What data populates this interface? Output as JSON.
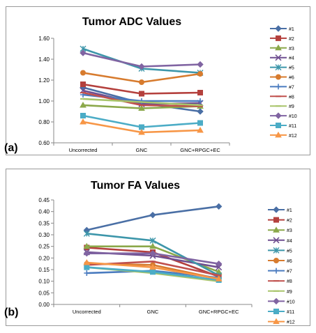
{
  "charts": {
    "a": {
      "panel_label": "(a)"
    },
    "b": {
      "panel_label": "(b)"
    }
  },
  "chart_data": [
    {
      "type": "line",
      "title": "Tumor ADC Values",
      "categories": [
        "Uncorrected",
        "GNC",
        "GNC+RPGC+EC"
      ],
      "ylim": [
        0.6,
        1.6
      ],
      "yticks": [
        "0.60",
        "0.80",
        "1.00",
        "1.20",
        "1.40",
        "1.60"
      ],
      "grid": false,
      "legend": "right",
      "series": [
        {
          "name": "#1",
          "color": "#4a6fa5",
          "marker": "diamond",
          "values": [
            1.13,
            0.98,
            0.9
          ]
        },
        {
          "name": "#2",
          "color": "#b4403d",
          "marker": "square",
          "values": [
            1.16,
            1.07,
            1.08
          ]
        },
        {
          "name": "#3",
          "color": "#8ba84a",
          "marker": "triangle",
          "values": [
            0.96,
            0.93,
            0.95
          ]
        },
        {
          "name": "#4",
          "color": "#6f4f90",
          "marker": "x",
          "values": [
            1.1,
            0.97,
            0.98
          ]
        },
        {
          "name": "#5",
          "color": "#3d96aa",
          "marker": "star",
          "values": [
            1.5,
            1.31,
            1.27
          ]
        },
        {
          "name": "#6",
          "color": "#d77b2e",
          "marker": "circle",
          "values": [
            1.27,
            1.18,
            1.26
          ]
        },
        {
          "name": "#7",
          "color": "#4a7bbf",
          "marker": "plus",
          "values": [
            1.06,
            1.0,
            1.0
          ]
        },
        {
          "name": "#8",
          "color": "#c0504d",
          "marker": "dash",
          "values": [
            1.08,
            0.96,
            0.95
          ]
        },
        {
          "name": "#9",
          "color": "#a8c46a",
          "marker": "dash",
          "values": [
            1.02,
            0.99,
            0.96
          ]
        },
        {
          "name": "#10",
          "color": "#8064a2",
          "marker": "diamond",
          "values": [
            1.46,
            1.33,
            1.35
          ]
        },
        {
          "name": "#11",
          "color": "#4bacc6",
          "marker": "square",
          "values": [
            0.86,
            0.75,
            0.79
          ]
        },
        {
          "name": "#12",
          "color": "#f79646",
          "marker": "triangle",
          "values": [
            0.8,
            0.7,
            0.72
          ]
        }
      ]
    },
    {
      "type": "line",
      "title": "Tumor FA Values",
      "categories": [
        "Uncorrected",
        "GNC",
        "GNC+RPGC+EC"
      ],
      "ylim": [
        0.0,
        0.45
      ],
      "yticks": [
        "0.00",
        "0.05",
        "0.10",
        "0.15",
        "0.20",
        "0.25",
        "0.30",
        "0.35",
        "0.40",
        "0.45"
      ],
      "grid": false,
      "legend": "right",
      "series": [
        {
          "name": "#1",
          "color": "#4a6fa5",
          "marker": "diamond",
          "values": [
            0.32,
            0.385,
            0.422
          ]
        },
        {
          "name": "#2",
          "color": "#b4403d",
          "marker": "square",
          "values": [
            0.245,
            0.225,
            0.12
          ]
        },
        {
          "name": "#3",
          "color": "#8ba84a",
          "marker": "triangle",
          "values": [
            0.25,
            0.25,
            0.14
          ]
        },
        {
          "name": "#4",
          "color": "#6f4f90",
          "marker": "x",
          "values": [
            0.225,
            0.21,
            0.16
          ]
        },
        {
          "name": "#5",
          "color": "#3d96aa",
          "marker": "star",
          "values": [
            0.305,
            0.275,
            0.125
          ]
        },
        {
          "name": "#6",
          "color": "#d77b2e",
          "marker": "circle",
          "values": [
            0.175,
            0.17,
            0.11
          ]
        },
        {
          "name": "#7",
          "color": "#4a7bbf",
          "marker": "plus",
          "values": [
            0.135,
            0.145,
            0.115
          ]
        },
        {
          "name": "#8",
          "color": "#c0504d",
          "marker": "dash",
          "values": [
            0.17,
            0.185,
            0.125
          ]
        },
        {
          "name": "#9",
          "color": "#a8c46a",
          "marker": "dash",
          "values": [
            0.16,
            0.135,
            0.1
          ]
        },
        {
          "name": "#10",
          "color": "#8064a2",
          "marker": "diamond",
          "values": [
            0.22,
            0.22,
            0.175
          ]
        },
        {
          "name": "#11",
          "color": "#4bacc6",
          "marker": "square",
          "values": [
            0.16,
            0.14,
            0.105
          ]
        },
        {
          "name": "#12",
          "color": "#f79646",
          "marker": "triangle",
          "values": [
            0.18,
            0.16,
            0.11
          ]
        }
      ]
    }
  ]
}
